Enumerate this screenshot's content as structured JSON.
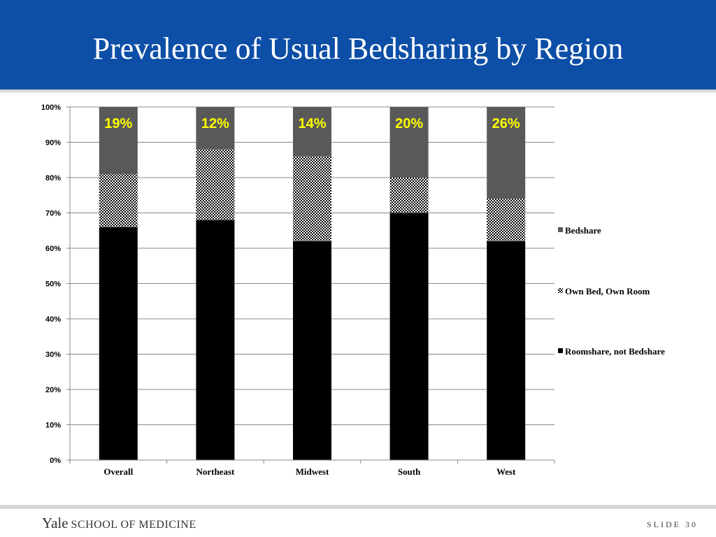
{
  "slide": {
    "title": "Prevalence of Usual Bedsharing by Region"
  },
  "footer": {
    "logo_name": "Yale",
    "logo_school": "SCHOOL OF MEDICINE",
    "slide_number": "SLIDE 30"
  },
  "colors": {
    "header_background": "#0d4ea6",
    "roomshare": "#000000",
    "own_bed": "#7f7f7f",
    "bedshare": "#595959",
    "annotation": "#ffff00"
  },
  "chart_data": {
    "type": "bar",
    "stacked": true,
    "categories": [
      "Overall",
      "Northeast",
      "Midwest",
      "South",
      "West"
    ],
    "series": [
      {
        "name": "Roomshare, not Bedshare",
        "values": [
          66,
          68,
          62,
          70,
          62
        ],
        "pattern": "solid"
      },
      {
        "name": "Own Bed, Own Room",
        "values": [
          15,
          20,
          24,
          10,
          12
        ],
        "pattern": "checker"
      },
      {
        "name": "Bedshare",
        "values": [
          19,
          12,
          14,
          20,
          26
        ],
        "pattern": "solid"
      }
    ],
    "annotations": [
      "19%",
      "12%",
      "14%",
      "20%",
      "26%"
    ],
    "y_ticks": [
      "0%",
      "10%",
      "20%",
      "30%",
      "40%",
      "50%",
      "60%",
      "70%",
      "80%",
      "90%",
      "100%"
    ],
    "ylim": [
      0,
      100
    ],
    "grid": true,
    "legend_position": "right"
  }
}
